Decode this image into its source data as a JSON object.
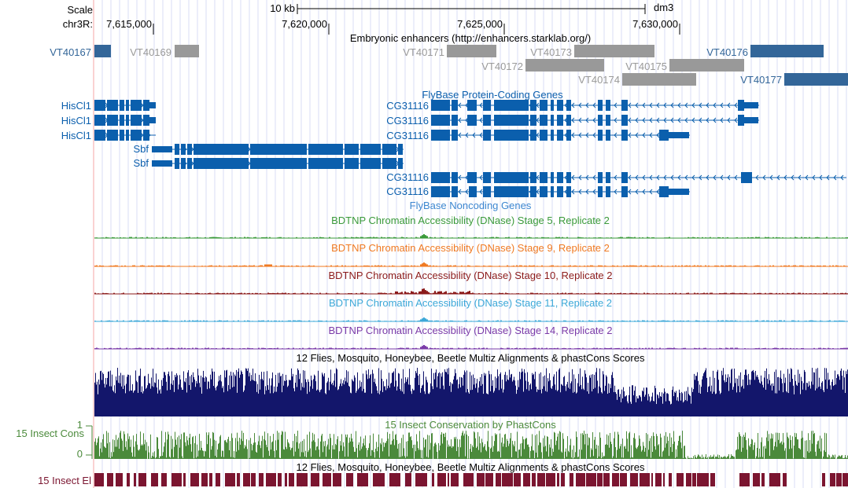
{
  "ruler": {
    "scale_label": "Scale",
    "chrom_label": "chr3R:",
    "scalebar_label": "10 kb",
    "assembly": "dm3",
    "ticks": [
      "7,615,000",
      "7,620,000",
      "7,625,000",
      "7,630,000"
    ]
  },
  "tracks": {
    "enhancers": {
      "title": "Embryonic enhancers (http://enhancers.starklab.org/)",
      "items": [
        {
          "name": "VT40167",
          "color": "#336699"
        },
        {
          "name": "VT40169",
          "color": "#999999"
        },
        {
          "name": "VT40171",
          "color": "#999999"
        },
        {
          "name": "VT40173",
          "color": "#999999"
        },
        {
          "name": "VT40176",
          "color": "#336699"
        },
        {
          "name": "VT40172",
          "color": "#999999"
        },
        {
          "name": "VT40175",
          "color": "#999999"
        },
        {
          "name": "VT40174",
          "color": "#999999"
        },
        {
          "name": "VT40177",
          "color": "#336699"
        }
      ]
    },
    "protein_coding": {
      "title": "FlyBase Protein-Coding Genes",
      "color": "#0b5fad",
      "genes": [
        {
          "name": "HisCl1",
          "strand": "+"
        },
        {
          "name": "HisCl1",
          "strand": "+"
        },
        {
          "name": "HisCl1",
          "strand": "+"
        },
        {
          "name": "Sbf",
          "strand": "+"
        },
        {
          "name": "Sbf",
          "strand": "+"
        },
        {
          "name": "CG31116",
          "strand": "-"
        },
        {
          "name": "CG31116",
          "strand": "-"
        },
        {
          "name": "CG31116",
          "strand": "-"
        },
        {
          "name": "CG31116",
          "strand": "-"
        },
        {
          "name": "CG31116",
          "strand": "-"
        }
      ]
    },
    "noncoding": {
      "title": "FlyBase Noncoding Genes"
    },
    "dnase": [
      {
        "title": "BDTNP Chromatin Accessibility (DNase) Stage 5, Replicate 2",
        "color": "#3a9a3a"
      },
      {
        "title": "BDTNP Chromatin Accessibility (DNase) Stage 9, Replicate 2",
        "color": "#f07a22"
      },
      {
        "title": "BDTNP Chromatin Accessibility (DNase) Stage 10, Replicate 2",
        "color": "#8b1a1a"
      },
      {
        "title": "BDTNP Chromatin Accessibility (DNase) Stage 11, Replicate 2",
        "color": "#3ca8d8"
      },
      {
        "title": "BDTNP Chromatin Accessibility (DNase) Stage 14, Replicate 2",
        "color": "#7a3aa8"
      }
    ],
    "multiz": {
      "title": "12 Flies, Mosquito, Honeybee, Beetle Multiz Alignments & phastCons Scores",
      "color": "#13166b"
    },
    "conservation": {
      "title": "15 Insect Conservation by PhastCons",
      "side_label": "15 Insect Cons",
      "ymax_label": "1",
      "ymin_label": "0",
      "color": "#4b8a3b"
    },
    "elements": {
      "title": "12 Flies, Mosquito, Honeybee, Beetle Multiz Alignments & phastCons Scores",
      "side_label": "15 Insect El",
      "color": "#7b1530"
    }
  }
}
